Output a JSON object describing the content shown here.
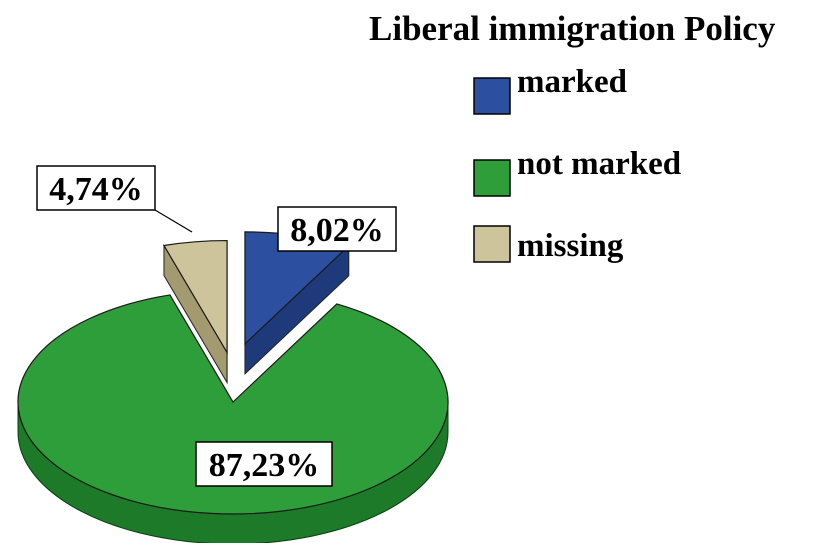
{
  "chart_data": {
    "type": "pie",
    "title": "Liberal immigration Policy",
    "categories": [
      "marked",
      "not marked",
      "missing"
    ],
    "values": [
      8.02,
      87.23,
      4.74
    ],
    "data_labels": [
      "8,02%",
      "87,23%",
      "4,74%"
    ],
    "colors": [
      "#2d4fa0",
      "#2e9e3a",
      "#cdc49c"
    ],
    "side_colors": [
      "#1f3a7a",
      "#1d7a28",
      "#a39a70"
    ],
    "legend": {
      "placement": "top-right",
      "items": [
        {
          "label": "marked",
          "color": "#2d4fa0"
        },
        {
          "label": "not marked",
          "color": "#2e9e3a"
        },
        {
          "label": "missing",
          "color": "#cdc49c"
        }
      ]
    },
    "exploded": true,
    "three_d": true
  }
}
